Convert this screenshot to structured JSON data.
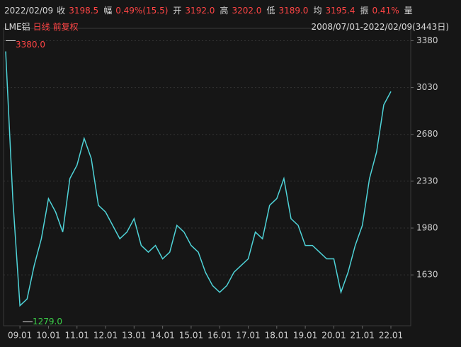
{
  "header": {
    "date": "2022/02/09",
    "fields": [
      {
        "label": "收",
        "value": "3198.5"
      },
      {
        "label": "幅",
        "value": "0.49%(15.5)"
      },
      {
        "label": "开",
        "value": "3192.0"
      },
      {
        "label": "高",
        "value": "3202.0"
      },
      {
        "label": "低",
        "value": "3189.0"
      },
      {
        "label": "均",
        "value": "3195.4"
      },
      {
        "label": "振",
        "value": "0.41%"
      },
      {
        "label": "量",
        "value": ""
      }
    ]
  },
  "chart_data": {
    "type": "line",
    "symbol": "LME铝",
    "period": "日线",
    "adjust": "前复权",
    "range": "2008/07/01-2022/02/09(3443日)",
    "categories": [
      null,
      null,
      "09.01",
      null,
      null,
      null,
      "10.01",
      null,
      null,
      null,
      "11.01",
      null,
      null,
      null,
      "12.01",
      null,
      null,
      null,
      "13.01",
      null,
      null,
      null,
      "14.01",
      null,
      null,
      null,
      "15.01",
      null,
      null,
      null,
      "16.01",
      null,
      null,
      null,
      "17.01",
      null,
      null,
      null,
      "18.01",
      null,
      null,
      null,
      "19.01",
      null,
      null,
      null,
      "20.01",
      null,
      null,
      null,
      "21.01",
      null,
      null,
      null,
      "22.01"
    ],
    "series": [
      {
        "color": "#4fd3d8",
        "values": [
          3300,
          2200,
          1400,
          1450,
          1700,
          1900,
          2200,
          2100,
          1950,
          2350,
          2450,
          2650,
          2500,
          2150,
          2100,
          2000,
          1900,
          1950,
          2050,
          1850,
          1800,
          1850,
          1750,
          1800,
          2000,
          1950,
          1850,
          1800,
          1650,
          1550,
          1500,
          1550,
          1650,
          1700,
          1750,
          1950,
          1900,
          2150,
          2200,
          2350,
          2050,
          2000,
          1850,
          1850,
          1800,
          1750,
          1750,
          1500,
          1650,
          1850,
          2000,
          2350,
          2550,
          2900,
          3000
        ]
      }
    ],
    "annotations": [
      {
        "text": "3380.0",
        "value": 3380
      },
      {
        "text": "1279.0",
        "value": 1279
      }
    ],
    "ylim": [
      1250,
      3430
    ],
    "yticks": [
      1630,
      1980,
      2330,
      2680,
      3030,
      3380
    ],
    "grid": true
  }
}
